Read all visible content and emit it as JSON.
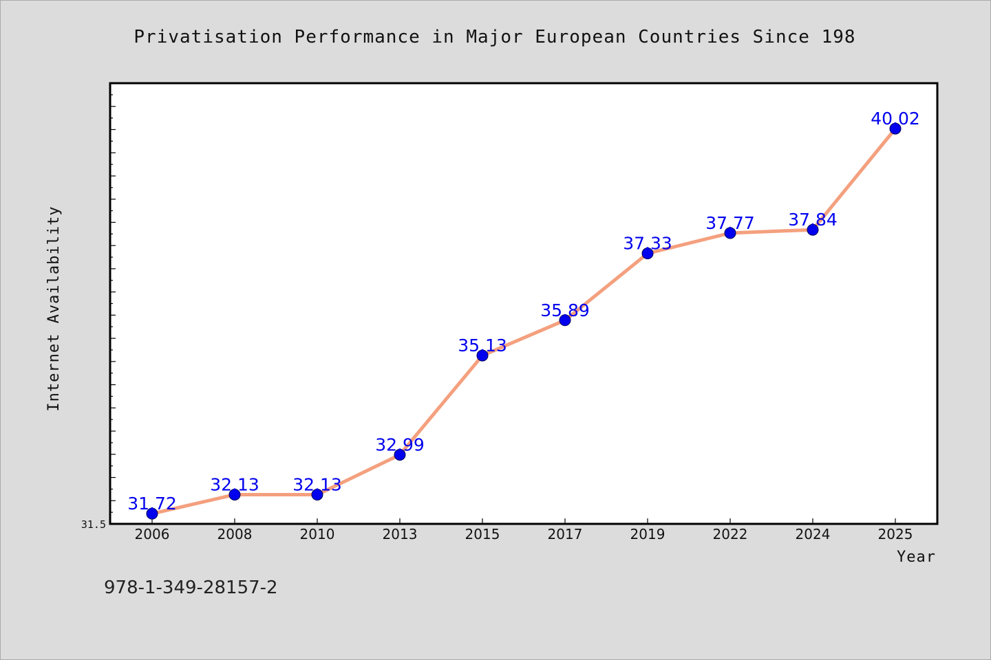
{
  "colors": {
    "background": "#dcdcdc",
    "plot_background": "#ffffff",
    "line": "#f4a07e",
    "marker": "#0000ee",
    "data_label": "#0000ee"
  },
  "footer_text": "978-1-349-28157-2",
  "chart_data": {
    "type": "line",
    "title": "Privatisation Performance in Major European Countries Since 198",
    "xlabel": "Year",
    "ylabel": "Internet Availability",
    "categories": [
      "2006",
      "2008",
      "2010",
      "2013",
      "2015",
      "2017",
      "2019",
      "2022",
      "2024",
      "2025"
    ],
    "series": [
      {
        "values": [
          31.72,
          32.13,
          32.13,
          32.99,
          35.13,
          35.89,
          37.33,
          37.77,
          37.84,
          40.02
        ],
        "labels": [
          "31.72",
          "32.13",
          "32.13",
          "32.99",
          "35.13",
          "35.89",
          "37.33",
          "37.77",
          "37.84",
          "40.02"
        ]
      }
    ],
    "ylim": [
      31.5,
      41.0
    ],
    "ytick_labels": [
      "31.5"
    ],
    "grid": false,
    "legend": "none"
  }
}
